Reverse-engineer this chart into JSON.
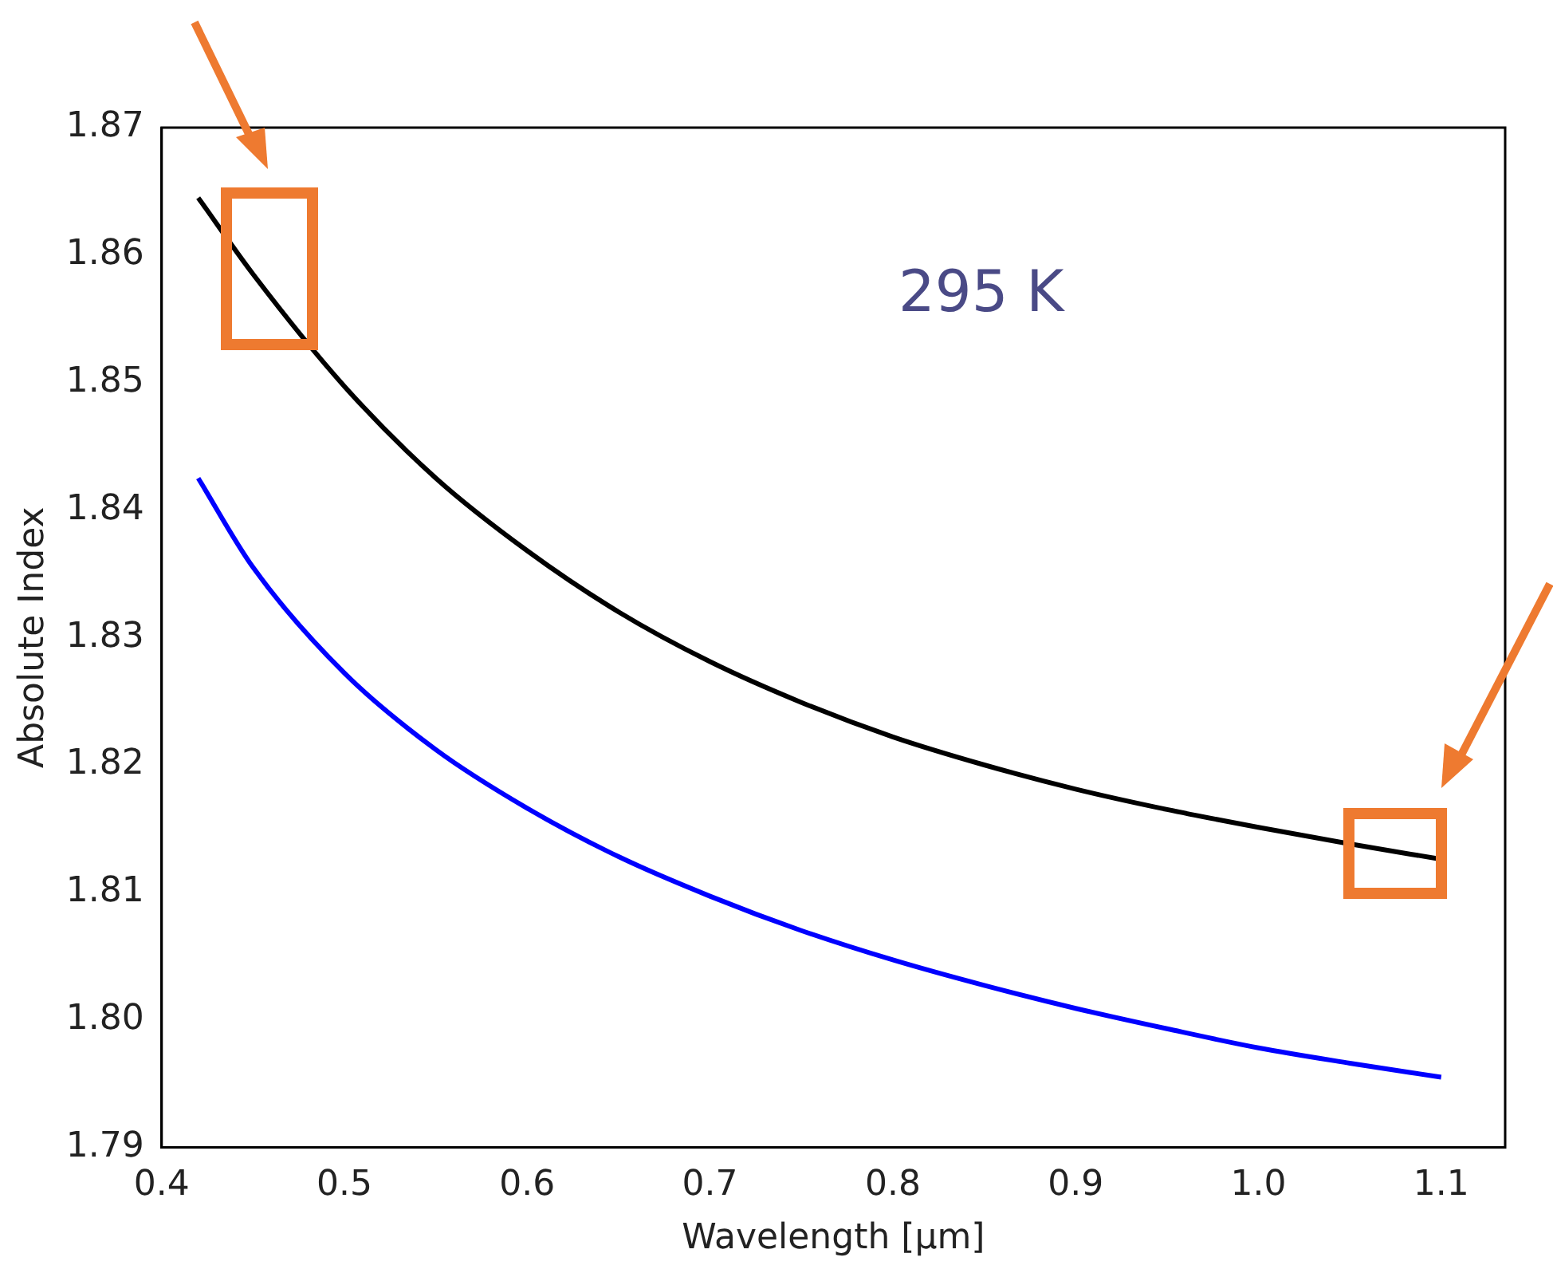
{
  "chart_data": {
    "type": "line",
    "xlabel": "Wavelength [$_{}$μm]",
    "ylabel": "Absolute Index",
    "annotations": [
      "295 K"
    ],
    "xlim": [
      0.4,
      1.135
    ],
    "ylim": [
      1.79,
      1.87
    ],
    "xticks": [
      0.4,
      0.5,
      0.6,
      0.7,
      0.8,
      0.9,
      {
        "value": 1.0,
        "label": "1.0"
      },
      1.1
    ],
    "yticks": [
      1.79,
      {
        "value": 1.8,
        "label": "1.80"
      },
      1.81,
      1.82,
      1.83,
      1.84,
      1.85,
      1.86,
      1.87
    ],
    "grid": false,
    "legend": false,
    "marker": "none",
    "line_style": "solid",
    "x": [
      0.42,
      0.45,
      0.5,
      0.55,
      0.6,
      0.65,
      0.7,
      0.75,
      0.8,
      0.85,
      0.9,
      0.95,
      1.0,
      1.05,
      1.1
    ],
    "series": [
      {
        "color": "#000000",
        "values": [
          1.8645,
          1.8585,
          1.8497,
          1.8425,
          1.8368,
          1.832,
          1.8281,
          1.8249,
          1.8222,
          1.82,
          1.8181,
          1.8165,
          1.8151,
          1.8138,
          1.8126
        ]
      },
      {
        "color": "#0000ff",
        "values": [
          1.8425,
          1.8355,
          1.8272,
          1.8212,
          1.8166,
          1.8128,
          1.8097,
          1.807,
          1.8047,
          1.8027,
          1.8009,
          1.7993,
          1.7978,
          1.7966,
          1.7955
        ]
      }
    ]
  }
}
